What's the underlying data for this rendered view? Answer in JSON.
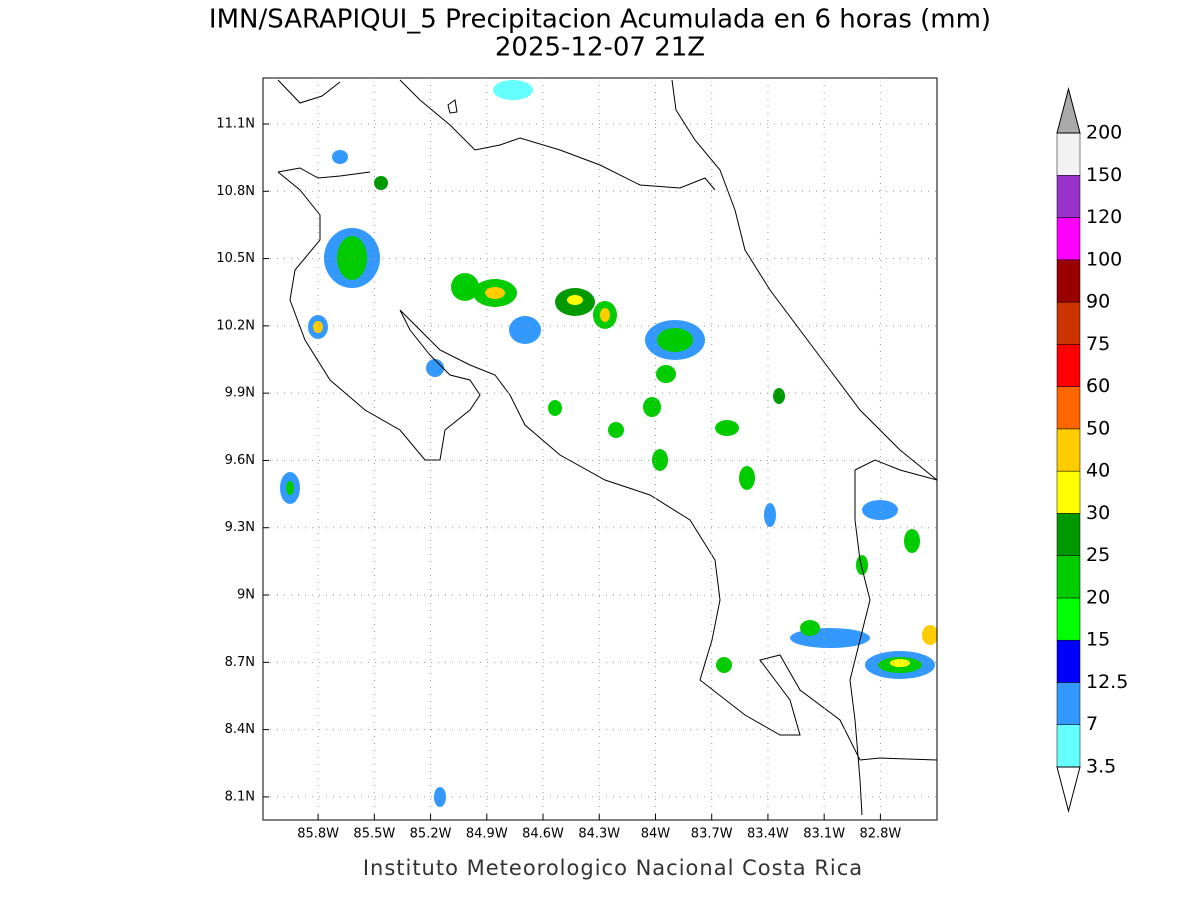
{
  "map": {
    "title": "IMN/SARAPIQUI_5 Precipitacion Acumulada en 6 horas (mm)",
    "subtitle": "2025-12-07 21Z",
    "footer": "Instituto Meteorologico Nacional Costa Rica",
    "xlim": [
      -86.094,
      -82.498
    ],
    "ylim": [
      7.997,
      11.305
    ],
    "xticks": [
      {
        "value": -85.8,
        "label": "85.8W"
      },
      {
        "value": -85.5,
        "label": "85.5W"
      },
      {
        "value": -85.2,
        "label": "85.2W"
      },
      {
        "value": -84.9,
        "label": "84.9W"
      },
      {
        "value": -84.6,
        "label": "84.6W"
      },
      {
        "value": -84.3,
        "label": "84.3W"
      },
      {
        "value": -84,
        "label": "84W"
      },
      {
        "value": -83.7,
        "label": "83.7W"
      },
      {
        "value": -83.4,
        "label": "83.4W"
      },
      {
        "value": -83.1,
        "label": "83.1W"
      },
      {
        "value": -82.8,
        "label": "82.8W"
      }
    ],
    "yticks": [
      {
        "value": 8.1,
        "label": "8.1N"
      },
      {
        "value": 8.4,
        "label": "8.4N"
      },
      {
        "value": 8.7,
        "label": "8.7N"
      },
      {
        "value": 9,
        "label": "9N"
      },
      {
        "value": 9.3,
        "label": "9.3N"
      },
      {
        "value": 9.6,
        "label": "9.6N"
      },
      {
        "value": 9.9,
        "label": "9.9N"
      },
      {
        "value": 10.2,
        "label": "10.2N"
      },
      {
        "value": 10.5,
        "label": "10.5N"
      },
      {
        "value": 10.8,
        "label": "10.8N"
      },
      {
        "value": 11.1,
        "label": "11.1N"
      }
    ],
    "grid": true,
    "colorbar": {
      "levels": [
        3.5,
        7,
        12.5,
        15,
        20,
        25,
        30,
        40,
        50,
        60,
        75,
        90,
        100,
        120,
        150,
        200
      ],
      "colors": [
        "#66ffff",
        "#3399ff",
        "#0000ff",
        "#00ff00",
        "#00cc00",
        "#009900",
        "#ffff00",
        "#ffcc00",
        "#ff6600",
        "#ff0000",
        "#cc3300",
        "#990000",
        "#ff00ff",
        "#9933cc",
        "#f2f2f2"
      ],
      "over_color": "#aaaaaa",
      "under_color": "#ffffff"
    }
  }
}
